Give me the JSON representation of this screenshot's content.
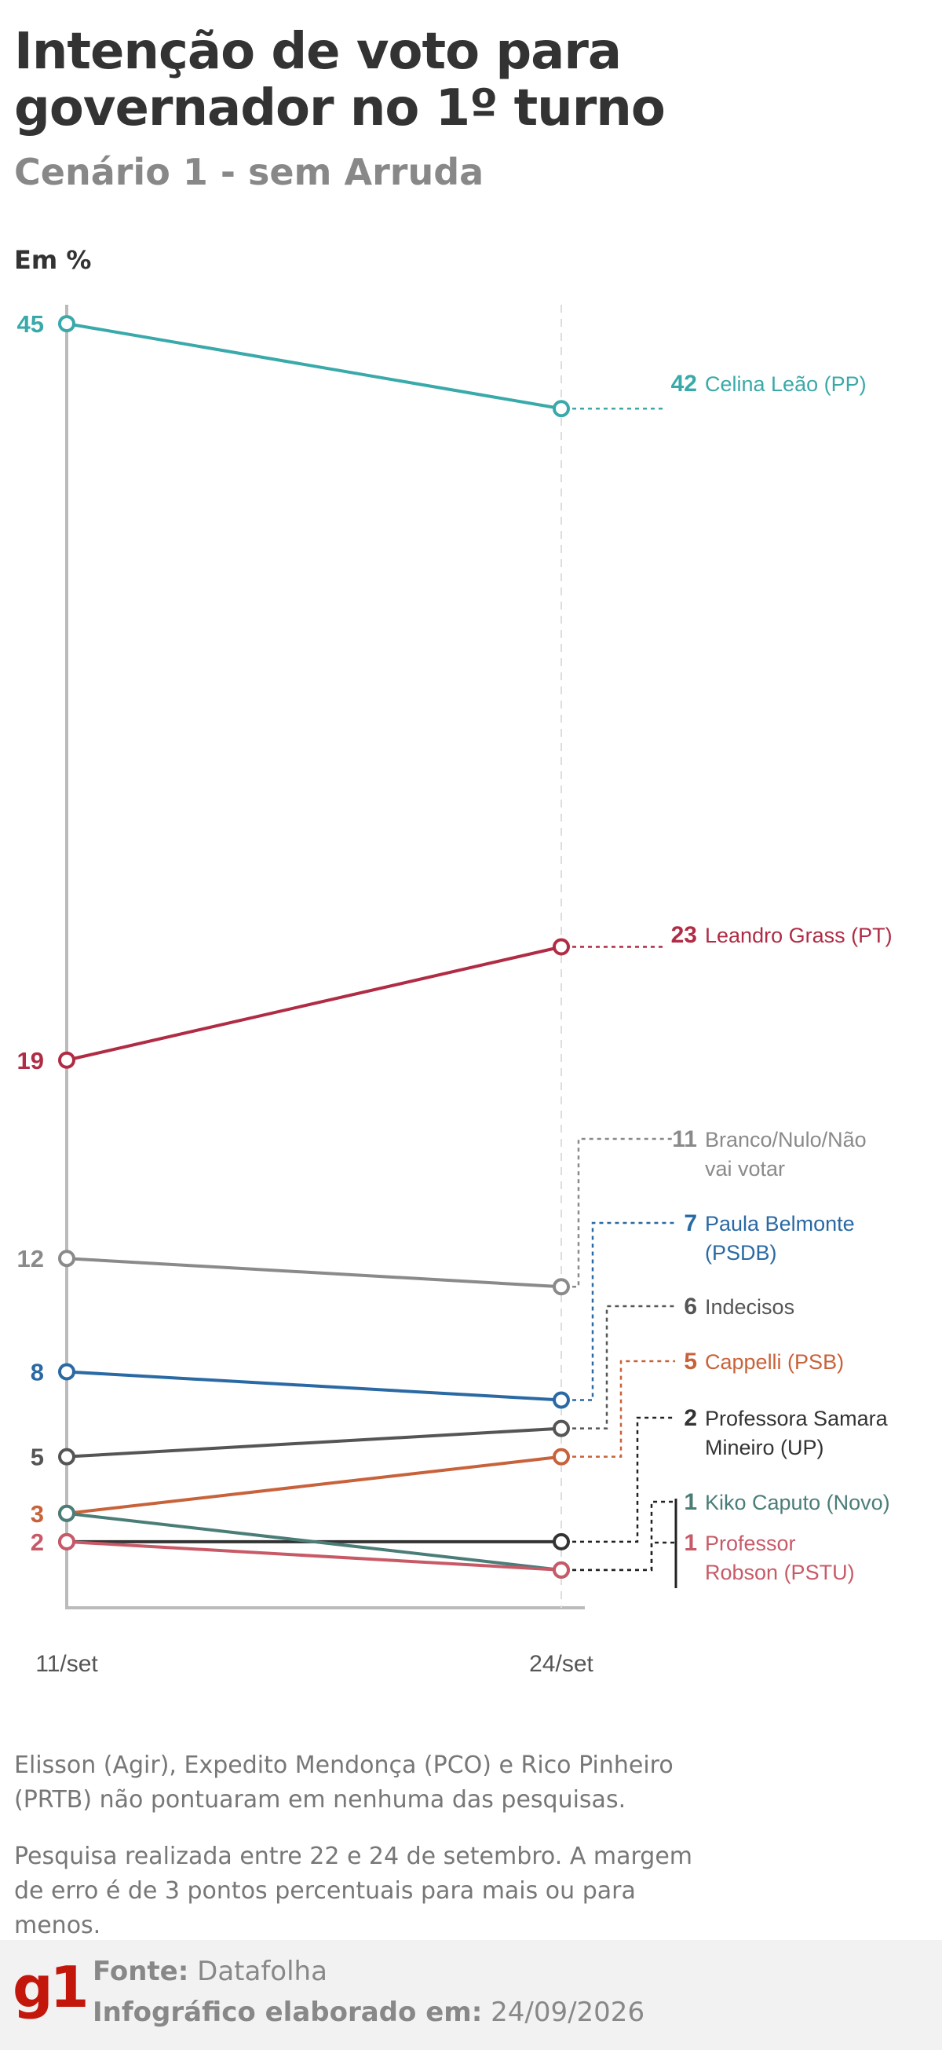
{
  "header": {
    "title": "Intenção de voto para governador no 1º turno",
    "subtitle": "Cenário 1 - sem Arruda",
    "unit": "Em %"
  },
  "chart_data": {
    "type": "line",
    "categories": [
      "11/set",
      "24/set"
    ],
    "ylim": [
      0,
      46
    ],
    "grid": false,
    "series": [
      {
        "name": "Celina Leão (PP)",
        "values": [
          45,
          42
        ],
        "color": "#3aa9a9",
        "start_label": "45",
        "end_label": "42"
      },
      {
        "name": "Leandro Grass (PT)",
        "values": [
          19,
          23
        ],
        "color": "#b02c45",
        "start_label": "19",
        "end_label": "23"
      },
      {
        "name": "Branco/Nulo/Não vai votar",
        "values": [
          12,
          11
        ],
        "color": "#8a8a8a",
        "start_label": "12",
        "end_label": "11"
      },
      {
        "name": "Paula Belmonte (PSDB)",
        "values": [
          8,
          7
        ],
        "color": "#2a69a3",
        "start_label": "8",
        "end_label": "7"
      },
      {
        "name": "Indecisos",
        "values": [
          5,
          6
        ],
        "color": "#555555",
        "start_label": "5",
        "end_label": "6"
      },
      {
        "name": "Cappelli (PSB)",
        "values": [
          3,
          5
        ],
        "color": "#c8623a",
        "start_label": "3",
        "end_label": "5"
      },
      {
        "name": "Professora Samara Mineiro (UP)",
        "values": [
          2,
          2
        ],
        "color": "#333333",
        "start_label": "",
        "end_label": "2"
      },
      {
        "name": "Kiko Caputo (Novo)",
        "values": [
          3,
          1
        ],
        "color": "#4b7d78",
        "start_label": "",
        "end_label": "1"
      },
      {
        "name": "Professor Robson (PSTU)",
        "values": [
          2,
          1
        ],
        "color": "#c85a68",
        "start_label": "2",
        "end_label": "1"
      }
    ]
  },
  "notes": {
    "not_scored": "Elisson (Agir), Expedito Mendonça (PCO) e Rico Pinheiro (PRTB) não pontuaram em nenhuma das pesquisas.",
    "methodology": "Pesquisa realizada entre 22 e 24 de setembro. A margem de erro é de 3 pontos percentuais para mais ou para menos."
  },
  "footer": {
    "logo": "g1",
    "source_label": "Fonte:",
    "source_value": "Datafolha",
    "date_label": "Infográfico elaborado em:",
    "date_value": "24/09/2026"
  }
}
